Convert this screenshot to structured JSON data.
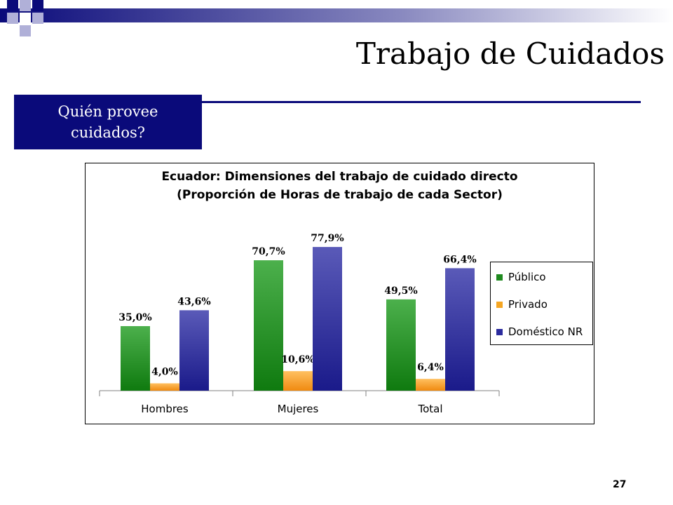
{
  "slide": {
    "title": "Trabajo de Cuidados",
    "subtitle_line1": "Quién provee",
    "subtitle_line2": "cuidados?",
    "page_number": "27"
  },
  "colors": {
    "navy": "#0a0a7a",
    "publico": "#1f8a1f",
    "privado": "#f5a623",
    "domestico": "#2b2b9e"
  },
  "chart_data": {
    "type": "bar",
    "title_line1": "Ecuador: Dimensiones del trabajo de cuidado directo",
    "title_line2": "(Proporción de Horas de trabajo de cada Sector)",
    "categories": [
      "Hombres",
      "Mujeres",
      "Total"
    ],
    "series": [
      {
        "name": "Público",
        "values": [
          35.0,
          70.7,
          49.5
        ],
        "labels": [
          "35,0%",
          "70,7%",
          "49,5%"
        ]
      },
      {
        "name": "Privado",
        "values": [
          4.0,
          10.6,
          6.4
        ],
        "labels": [
          "4,0%",
          "10,6%",
          "6,4%"
        ]
      },
      {
        "name": "Doméstico NR",
        "values": [
          43.6,
          77.9,
          66.4
        ],
        "labels": [
          "43,6%",
          "77,9%",
          "66,4%"
        ]
      }
    ],
    "ylim": [
      0,
      100
    ],
    "grid": false,
    "legend_position": "right"
  }
}
